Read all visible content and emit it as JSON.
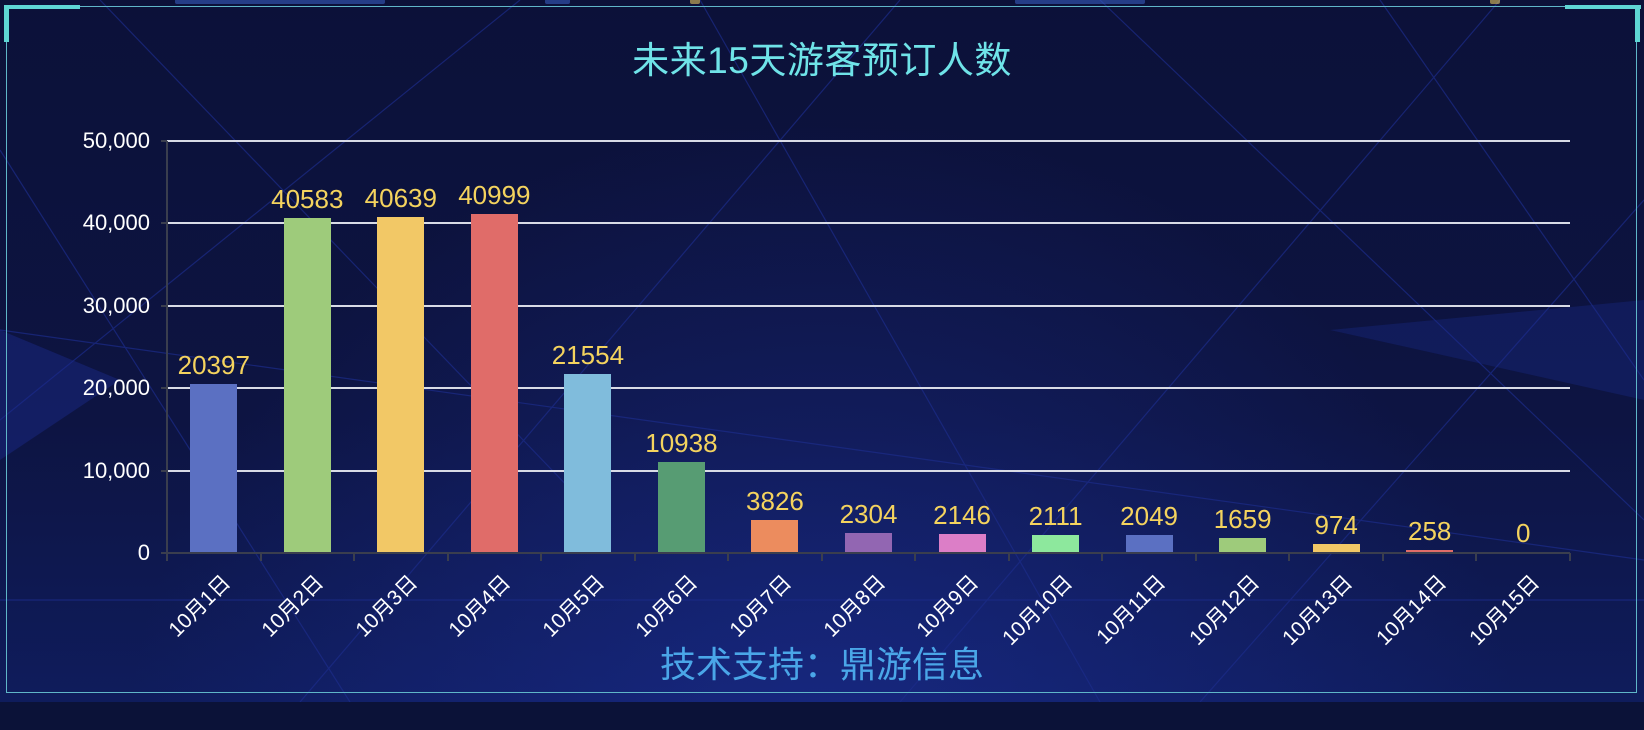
{
  "panel": {
    "title": "未来15天游客预订人数",
    "footer": "技术支持：鼎游信息",
    "accent_color": "#6fe3e8",
    "footer_color": "#4aa6e8",
    "label_color": "#f4d35e"
  },
  "chart_data": {
    "type": "bar",
    "title": "未来15天游客预订人数",
    "xlabel": "",
    "ylabel": "",
    "ylim": [
      0,
      50000
    ],
    "yticks": [
      "0",
      "10,000",
      "20,000",
      "30,000",
      "40,000",
      "50,000"
    ],
    "grid": true,
    "legend": null,
    "categories": [
      "10月1日",
      "10月2日",
      "10月3日",
      "10月4日",
      "10月5日",
      "10月6日",
      "10月7日",
      "10月8日",
      "10月9日",
      "10月10日",
      "10月11日",
      "10月12日",
      "10月13日",
      "10月14日",
      "10月15日"
    ],
    "values": [
      20397,
      40583,
      40639,
      40999,
      21554,
      10938,
      3826,
      2304,
      2146,
      2111,
      2049,
      1659,
      974,
      258,
      0
    ],
    "bar_colors": [
      "#5b70c2",
      "#9ecb7b",
      "#f2c866",
      "#e06c69",
      "#80bcdc",
      "#579c73",
      "#ec8c5e",
      "#9266b2",
      "#dc7ec7",
      "#8de89d",
      "#5b70c2",
      "#9ecb7b",
      "#f2c866",
      "#e06c69",
      "#80bcdc"
    ],
    "data_labels": [
      "20397",
      "40583",
      "40639",
      "40999",
      "21554",
      "10938",
      "3826",
      "2304",
      "2146",
      "2111",
      "2049",
      "1659",
      "974",
      "258",
      "0"
    ],
    "footer": "技术支持：鼎游信息"
  }
}
